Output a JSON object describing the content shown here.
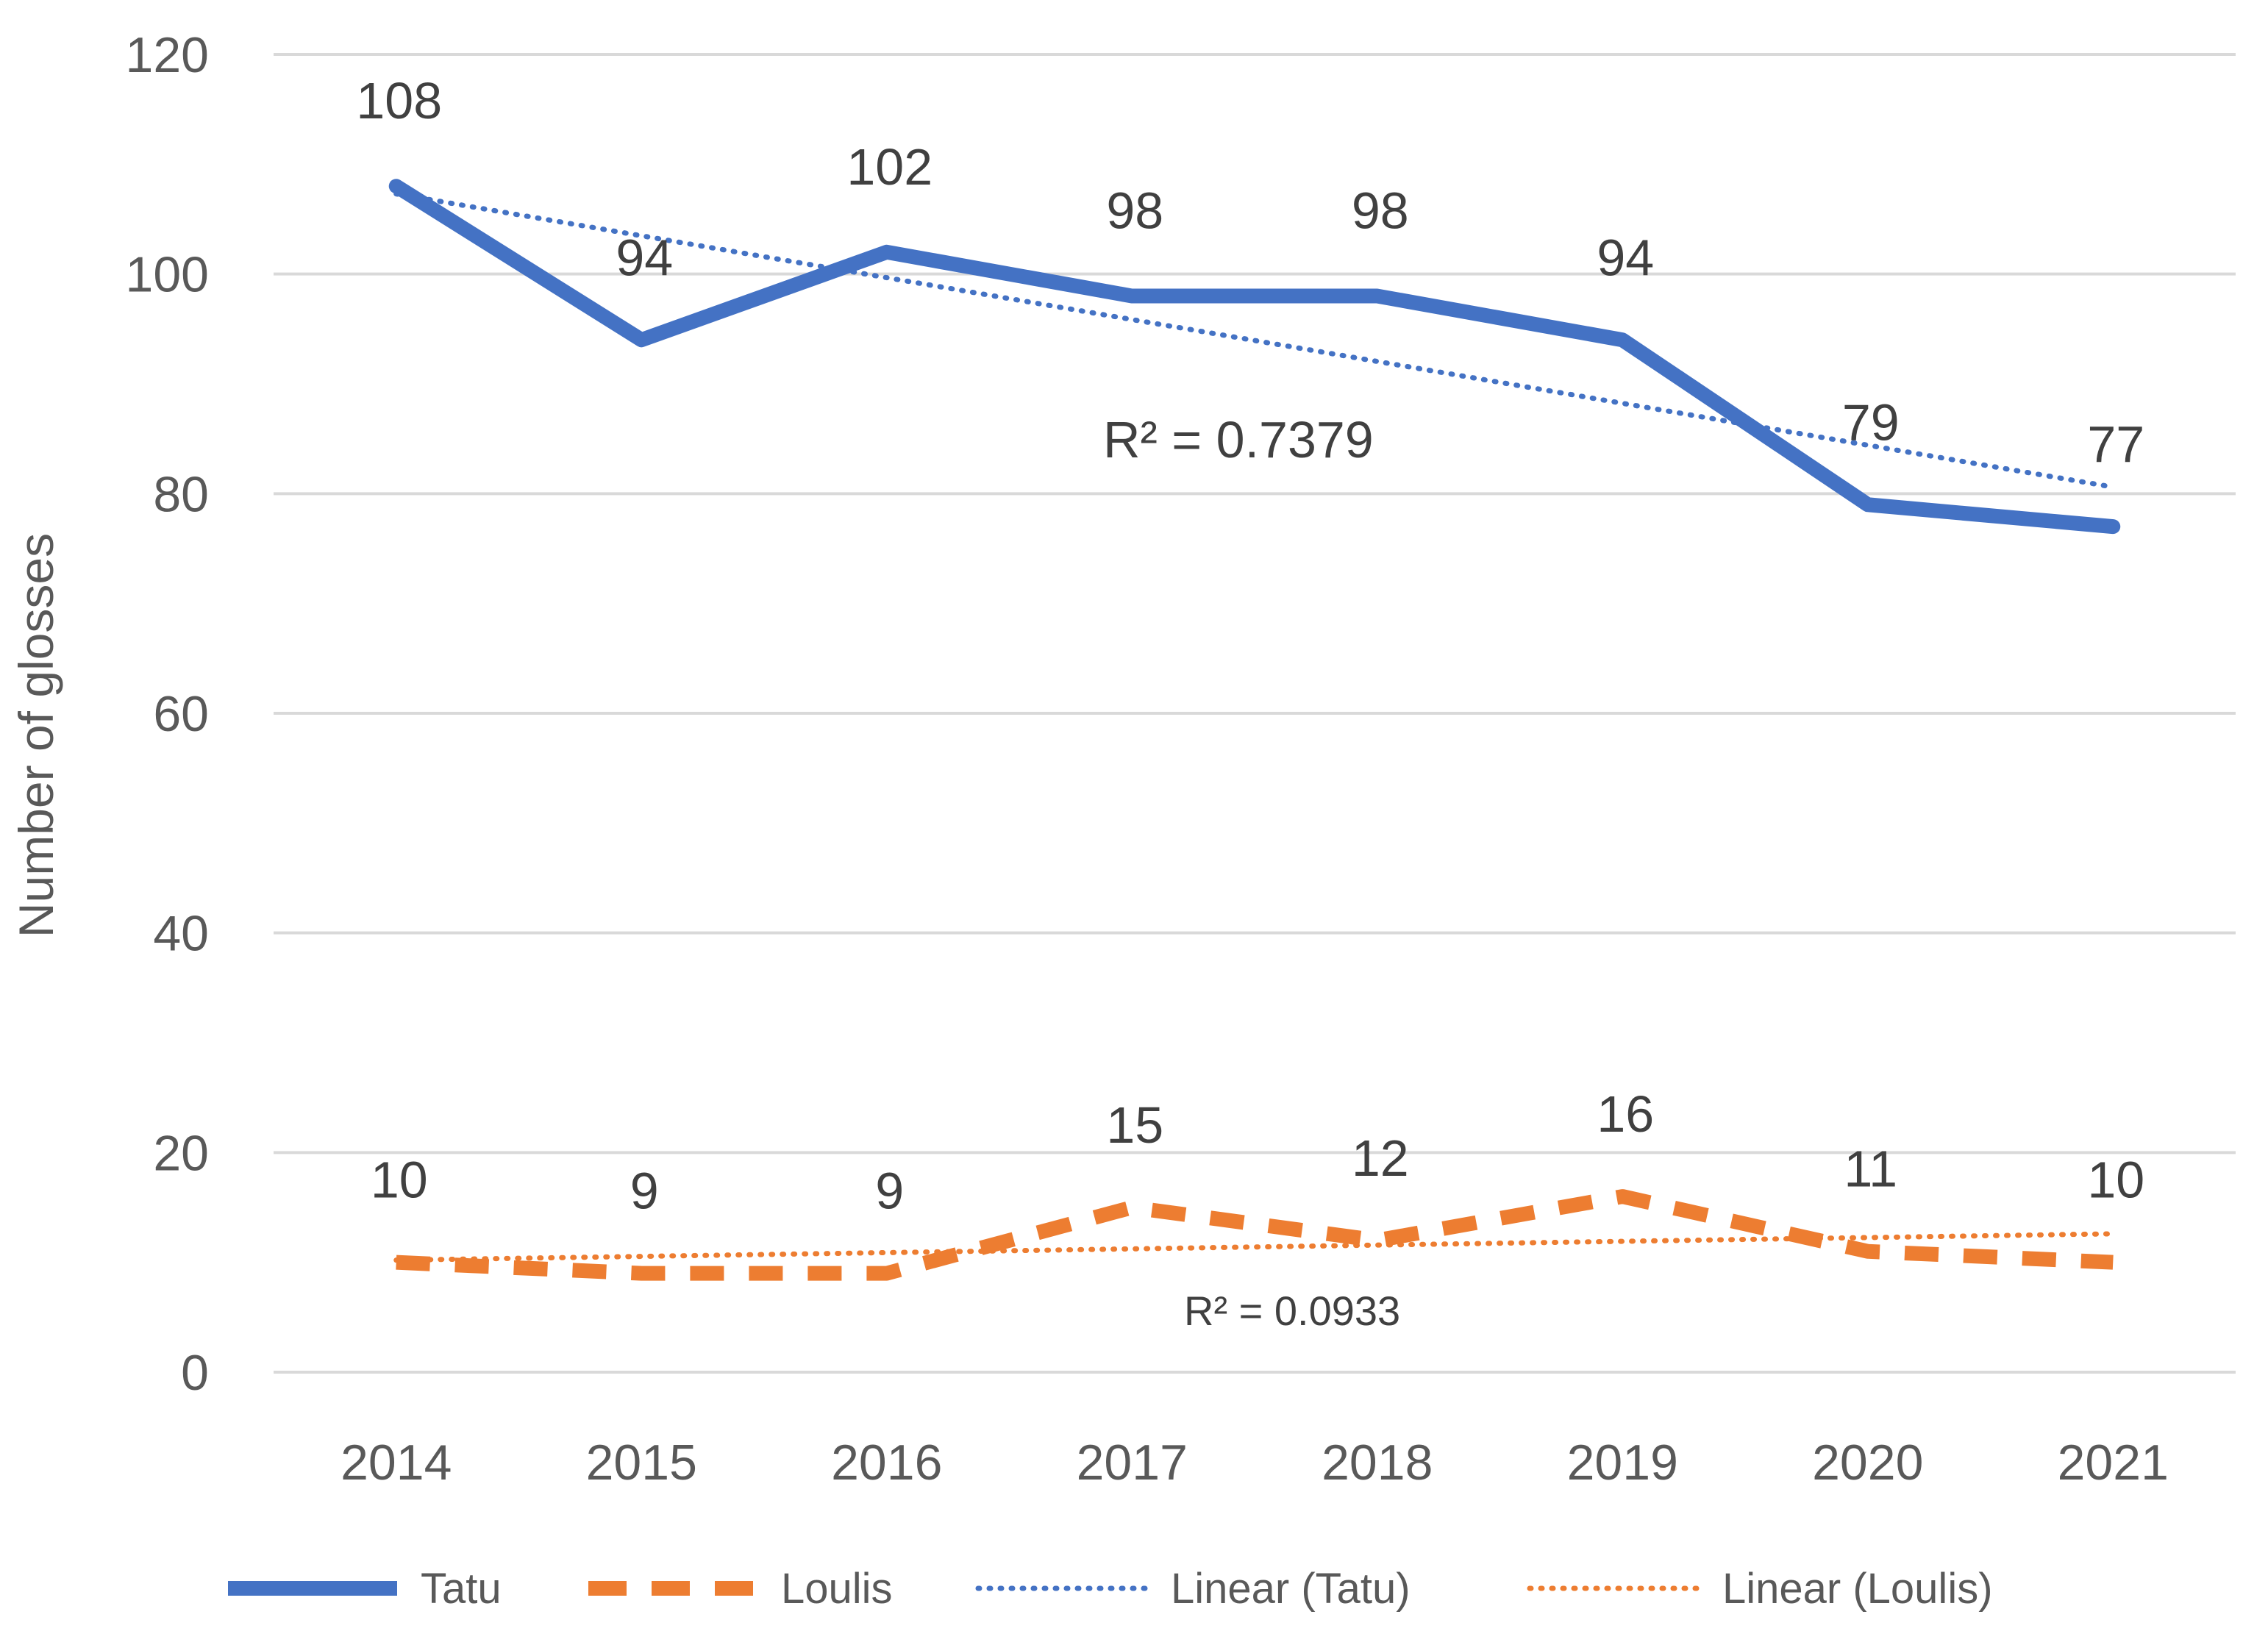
{
  "chart_data": {
    "type": "line",
    "title": "",
    "xlabel": "",
    "ylabel": "Number of glosses",
    "ylim": [
      0,
      120
    ],
    "yticks": [
      "0",
      "20",
      "40",
      "60",
      "80",
      "100",
      "120"
    ],
    "categories": [
      "2014",
      "2015",
      "2016",
      "2017",
      "2018",
      "2019",
      "2020",
      "2021"
    ],
    "grid": true,
    "legend_position": "bottom",
    "series": [
      {
        "name": "Tatu",
        "values": [
          108,
          94,
          102,
          98,
          98,
          94,
          79,
          77
        ],
        "data_labels": [
          "108",
          "94",
          "102",
          "98",
          "98",
          "94",
          "79",
          "77"
        ],
        "color": "#4472C4",
        "style": "solid"
      },
      {
        "name": "Loulis",
        "values": [
          10,
          9,
          9,
          15,
          12,
          16,
          11,
          10
        ],
        "data_labels": [
          "10",
          "9",
          "9",
          "15",
          "12",
          "16",
          "11",
          "10"
        ],
        "color": "#ED7D31",
        "style": "dashed"
      }
    ],
    "trendlines": [
      {
        "name": "Linear (Tatu)",
        "start": 107.3,
        "end": 80.6,
        "r2_label": "R² = 0.7379",
        "color": "#4472C4",
        "style": "dotted"
      },
      {
        "name": "Linear (Loulis)",
        "start": 10.2,
        "end": 12.6,
        "r2_label": "R² = 0.0933",
        "color": "#ED7D31",
        "style": "dotted"
      }
    ]
  }
}
